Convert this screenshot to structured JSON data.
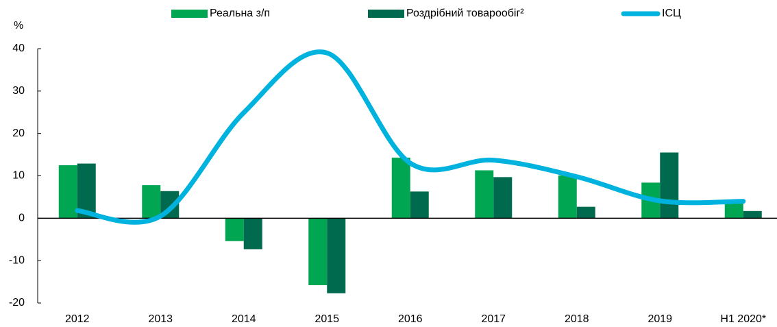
{
  "chart_data": {
    "type": "bar",
    "y_label": "%",
    "categories": [
      "2012",
      "2013",
      "2014",
      "2015",
      "2016",
      "2017",
      "2018",
      "2019",
      "H1 2020*"
    ],
    "series": [
      {
        "name": "Реальна з/п",
        "type": "bar",
        "color": "#00a651",
        "values": [
          12.5,
          7.8,
          -5.4,
          -15.8,
          14.3,
          11.3,
          10.1,
          8.4,
          4.3
        ]
      },
      {
        "name": "Роздрібний товарообіг²",
        "type": "bar",
        "color": "#006a4e",
        "values": [
          12.9,
          6.4,
          -7.3,
          -17.7,
          6.3,
          9.7,
          2.7,
          15.5,
          1.7
        ]
      },
      {
        "name": "ІСЦ",
        "type": "line",
        "color": "#00b2de",
        "values": [
          1.8,
          0.5,
          24.9,
          39,
          13,
          13.7,
          9.8,
          4.1,
          4
        ]
      }
    ],
    "ylim": [
      -20,
      40
    ],
    "yticks": [
      -20,
      -10,
      0,
      10,
      20,
      30,
      40
    ],
    "grid": false
  }
}
